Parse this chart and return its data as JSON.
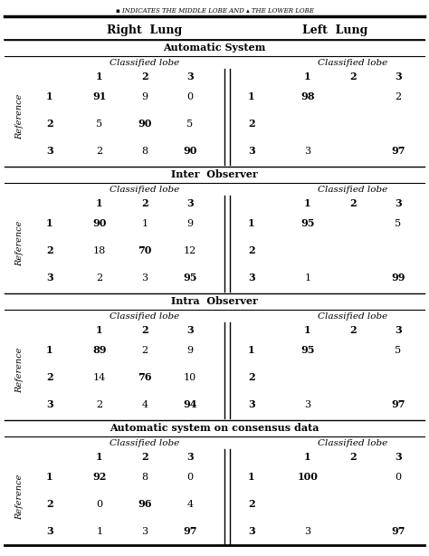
{
  "header_top": "▪ INDICATES THE MIDDLE LOBE AND ▴ THE LOWER LOBE",
  "right_lung_label": "Right  Lung",
  "left_lung_label": "Left  Lung",
  "sections": [
    {
      "title": "Automatic System",
      "right": {
        "rows": [
          {
            "ref": "1",
            "vals": [
              "91",
              "9",
              "0"
            ],
            "bold": [
              true,
              false,
              false
            ]
          },
          {
            "ref": "2",
            "vals": [
              "5",
              "90",
              "5"
            ],
            "bold": [
              false,
              true,
              false
            ]
          },
          {
            "ref": "3",
            "vals": [
              "2",
              "8",
              "90"
            ],
            "bold": [
              false,
              false,
              true
            ]
          }
        ]
      },
      "left": {
        "rows": [
          {
            "ref": "1",
            "vals": [
              "98",
              "",
              "2"
            ],
            "bold": [
              true,
              false,
              false
            ]
          },
          {
            "ref": "2",
            "vals": [
              "",
              "",
              ""
            ],
            "bold": [
              false,
              false,
              false
            ]
          },
          {
            "ref": "3",
            "vals": [
              "3",
              "",
              "97"
            ],
            "bold": [
              false,
              false,
              true
            ]
          }
        ]
      }
    },
    {
      "title": "Inter  Observer",
      "right": {
        "rows": [
          {
            "ref": "1",
            "vals": [
              "90",
              "1",
              "9"
            ],
            "bold": [
              true,
              false,
              false
            ]
          },
          {
            "ref": "2",
            "vals": [
              "18",
              "70",
              "12"
            ],
            "bold": [
              false,
              true,
              false
            ]
          },
          {
            "ref": "3",
            "vals": [
              "2",
              "3",
              "95"
            ],
            "bold": [
              false,
              false,
              true
            ]
          }
        ]
      },
      "left": {
        "rows": [
          {
            "ref": "1",
            "vals": [
              "95",
              "",
              "5"
            ],
            "bold": [
              true,
              false,
              false
            ]
          },
          {
            "ref": "2",
            "vals": [
              "",
              "",
              ""
            ],
            "bold": [
              false,
              false,
              false
            ]
          },
          {
            "ref": "3",
            "vals": [
              "1",
              "",
              "99"
            ],
            "bold": [
              false,
              false,
              true
            ]
          }
        ]
      }
    },
    {
      "title": "Intra  Observer",
      "right": {
        "rows": [
          {
            "ref": "1",
            "vals": [
              "89",
              "2",
              "9"
            ],
            "bold": [
              true,
              false,
              false
            ]
          },
          {
            "ref": "2",
            "vals": [
              "14",
              "76",
              "10"
            ],
            "bold": [
              false,
              true,
              false
            ]
          },
          {
            "ref": "3",
            "vals": [
              "2",
              "4",
              "94"
            ],
            "bold": [
              false,
              false,
              true
            ]
          }
        ]
      },
      "left": {
        "rows": [
          {
            "ref": "1",
            "vals": [
              "95",
              "",
              "5"
            ],
            "bold": [
              true,
              false,
              false
            ]
          },
          {
            "ref": "2",
            "vals": [
              "",
              "",
              ""
            ],
            "bold": [
              false,
              false,
              false
            ]
          },
          {
            "ref": "3",
            "vals": [
              "3",
              "",
              "97"
            ],
            "bold": [
              false,
              false,
              true
            ]
          }
        ]
      }
    },
    {
      "title": "Automatic system on consensus data",
      "right": {
        "rows": [
          {
            "ref": "1",
            "vals": [
              "92",
              "8",
              "0"
            ],
            "bold": [
              true,
              false,
              false
            ]
          },
          {
            "ref": "2",
            "vals": [
              "0",
              "96",
              "4"
            ],
            "bold": [
              false,
              true,
              false
            ]
          },
          {
            "ref": "3",
            "vals": [
              "1",
              "3",
              "97"
            ],
            "bold": [
              false,
              false,
              true
            ]
          }
        ]
      },
      "left": {
        "rows": [
          {
            "ref": "1",
            "vals": [
              "100",
              "",
              "0"
            ],
            "bold": [
              true,
              false,
              false
            ]
          },
          {
            "ref": "2",
            "vals": [
              "",
              "",
              ""
            ],
            "bold": [
              false,
              false,
              false
            ]
          },
          {
            "ref": "3",
            "vals": [
              "3",
              "",
              "97"
            ],
            "bold": [
              false,
              false,
              true
            ]
          }
        ]
      }
    }
  ]
}
